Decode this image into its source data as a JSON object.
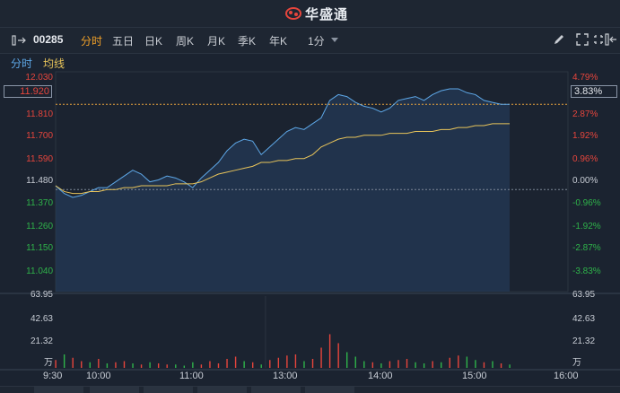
{
  "app": {
    "brand": "华盛通"
  },
  "toolbar": {
    "code": "00285",
    "tabs": [
      "分时",
      "五日",
      "日K",
      "周K",
      "月K",
      "季K",
      "年K",
      "1分"
    ],
    "active": "分时"
  },
  "subtabs": {
    "left": "分时",
    "right": "均线"
  },
  "current": {
    "price": "11.920",
    "pct": "3.83%"
  },
  "price_axis": [
    "12.030",
    "11.810",
    "11.700",
    "11.590",
    "11.480",
    "11.370",
    "11.260",
    "11.150",
    "11.040"
  ],
  "pct_axis": [
    "4.79%",
    "2.87%",
    "1.92%",
    "0.96%",
    "0.00%",
    "-0.96%",
    "-1.92%",
    "-2.87%",
    "-3.83%"
  ],
  "volume_axis": [
    "63.95",
    "42.63",
    "21.32",
    "万"
  ],
  "time_axis": [
    "9:30",
    "10:00",
    "11:00",
    "13:00",
    "14:00",
    "15:00",
    "16:00"
  ],
  "colors": {
    "up": "#e6453c",
    "down": "#2fb34a",
    "price_line": "#5ea8e8",
    "avg_line": "#e8c45a",
    "active": "#f0a028"
  },
  "chart_data": {
    "type": "line",
    "x": [
      "9:30",
      "9:35",
      "9:40",
      "9:45",
      "9:50",
      "9:55",
      "10:00",
      "10:05",
      "10:10",
      "10:15",
      "10:20",
      "10:25",
      "10:30",
      "10:35",
      "10:40",
      "10:45",
      "10:50",
      "10:55",
      "11:00",
      "11:05",
      "11:10",
      "11:15",
      "11:20",
      "11:25",
      "11:30",
      "13:00",
      "13:05",
      "13:10",
      "13:15",
      "13:20",
      "13:25",
      "13:30",
      "13:35",
      "13:40",
      "13:45",
      "13:50",
      "13:55",
      "14:00",
      "14:05",
      "14:10",
      "14:15",
      "14:20",
      "14:25",
      "14:30",
      "14:35",
      "14:40",
      "14:45",
      "14:50",
      "14:55",
      "15:00",
      "15:05",
      "15:10",
      "15:15",
      "15:20"
    ],
    "series": [
      {
        "values": [
          11.5,
          11.46,
          11.44,
          11.45,
          11.47,
          11.49,
          11.49,
          11.52,
          11.55,
          11.58,
          11.56,
          11.52,
          11.53,
          11.55,
          11.54,
          11.52,
          11.49,
          11.54,
          11.58,
          11.62,
          11.68,
          11.72,
          11.74,
          11.73,
          11.66,
          11.7,
          11.74,
          11.78,
          11.8,
          11.79,
          11.82,
          11.85,
          11.94,
          11.97,
          11.96,
          11.93,
          11.91,
          11.9,
          11.88,
          11.9,
          11.94,
          11.95,
          11.96,
          11.94,
          11.97,
          11.99,
          12.0,
          12.0,
          11.98,
          11.97,
          11.94,
          11.93,
          11.92,
          11.92
        ]
      },
      {
        "values": [
          11.5,
          11.47,
          11.46,
          11.46,
          11.47,
          11.47,
          11.48,
          11.48,
          11.49,
          11.49,
          11.5,
          11.5,
          11.5,
          11.5,
          11.51,
          11.51,
          11.51,
          11.52,
          11.54,
          11.56,
          11.57,
          11.58,
          11.59,
          11.6,
          11.62,
          11.62,
          11.63,
          11.63,
          11.64,
          11.64,
          11.66,
          11.7,
          11.72,
          11.74,
          11.75,
          11.75,
          11.76,
          11.76,
          11.76,
          11.77,
          11.77,
          11.77,
          11.78,
          11.78,
          11.78,
          11.79,
          11.79,
          11.8,
          11.8,
          11.81,
          11.81,
          11.82,
          11.82,
          11.82
        ]
      }
    ],
    "volume": [
      7,
      12,
      9,
      6,
      5,
      8,
      4,
      5,
      6,
      4,
      3,
      5,
      4,
      3,
      3,
      2,
      5,
      3,
      6,
      4,
      8,
      10,
      6,
      5,
      3,
      7,
      9,
      11,
      12,
      6,
      8,
      18,
      30,
      22,
      14,
      10,
      6,
      5,
      4,
      6,
      7,
      8,
      5,
      4,
      6,
      5,
      9,
      11,
      10,
      7,
      5,
      6,
      4,
      3
    ],
    "volume_up": [
      true,
      false,
      true,
      true,
      false,
      true,
      false,
      true,
      true,
      false,
      true,
      false,
      true,
      true,
      false,
      false,
      false,
      true,
      true,
      true,
      true,
      true,
      false,
      true,
      false,
      true,
      true,
      true,
      true,
      false,
      true,
      true,
      true,
      true,
      false,
      false,
      false,
      true,
      false,
      true,
      true,
      true,
      false,
      false,
      true,
      false,
      true,
      true,
      false,
      false,
      true,
      false,
      true,
      false
    ],
    "ylim": [
      11.0,
      12.06
    ],
    "prev_close": 11.48,
    "volume_max": 63.95
  }
}
